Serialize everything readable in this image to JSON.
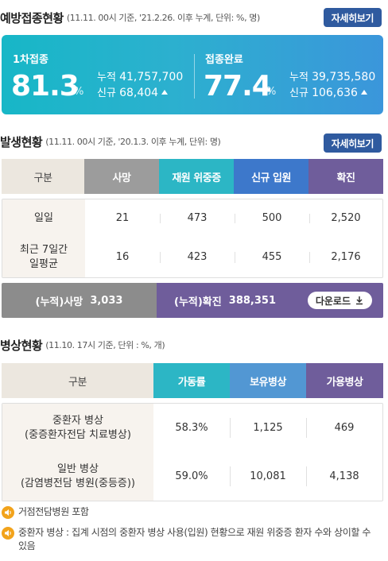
{
  "vaccination": {
    "title": "예방접종현황",
    "note": "(11.11. 00시 기준, '21.2.26. 이후 누계, 단위: %, 명)",
    "more_label": "자세히보기",
    "first_dose": {
      "label": "1차접종",
      "rate": "81.3",
      "unit": "%",
      "cumulative_label": "누적",
      "cumulative": "41,757,700",
      "new_label": "신규",
      "new": "68,404"
    },
    "completed": {
      "label": "접종완료",
      "rate": "77.4",
      "unit": "%",
      "cumulative_label": "누적",
      "cumulative": "39,735,580",
      "new_label": "신규",
      "new": "106,636"
    }
  },
  "outbreak": {
    "title": "발생현황",
    "note": "(11.11. 00시 기준, '20.1.3. 이후 누계, 단위: 명)",
    "more_label": "자세히보기",
    "headers": [
      "구분",
      "사망",
      "재원 위중증",
      "신규 입원",
      "확진"
    ],
    "header_colors": [
      "#ece7df",
      "#9c9c9c",
      "#2cb6c5",
      "#3d78cb",
      "#6f5d9b"
    ],
    "rows": [
      {
        "label": "일일",
        "values": [
          "21",
          "473",
          "500",
          "2,520"
        ]
      },
      {
        "label": "최근 7일간\n일평균",
        "values": [
          "16",
          "423",
          "455",
          "2,176"
        ]
      }
    ],
    "cumulative": {
      "death_label": "(누적)사망",
      "death": "3,033",
      "confirmed_label": "(누적)확진",
      "confirmed": "388,351",
      "download_label": "다운로드"
    }
  },
  "beds": {
    "title": "병상현황",
    "note": "(11.10. 17시 기준, 단위 : %, 개)",
    "headers": [
      "구분",
      "가동률",
      "보유병상",
      "가용병상"
    ],
    "header_colors": [
      "#ece7df",
      "#2cb6c5",
      "#5297d3",
      "#6f5d9b"
    ],
    "rows": [
      {
        "label": "중환자 병상\n(중증환자전담 치료병상)",
        "values": [
          "58.3%",
          "1,125",
          "469"
        ]
      },
      {
        "label": "일반 병상\n(감염병전담 병원(중등증))",
        "values": [
          "59.0%",
          "10,081",
          "4,138"
        ]
      }
    ]
  },
  "notes": [
    "거점전담병원 포함",
    "중환자 병상 : 집계 시점의 중환자 병상 사용(입원) 현황으로 재원 위중증 환자 수와 상이할 수 있음"
  ],
  "icons": {
    "note": "speaker-icon",
    "download": "download-icon",
    "increase": "triangle-up-icon"
  }
}
